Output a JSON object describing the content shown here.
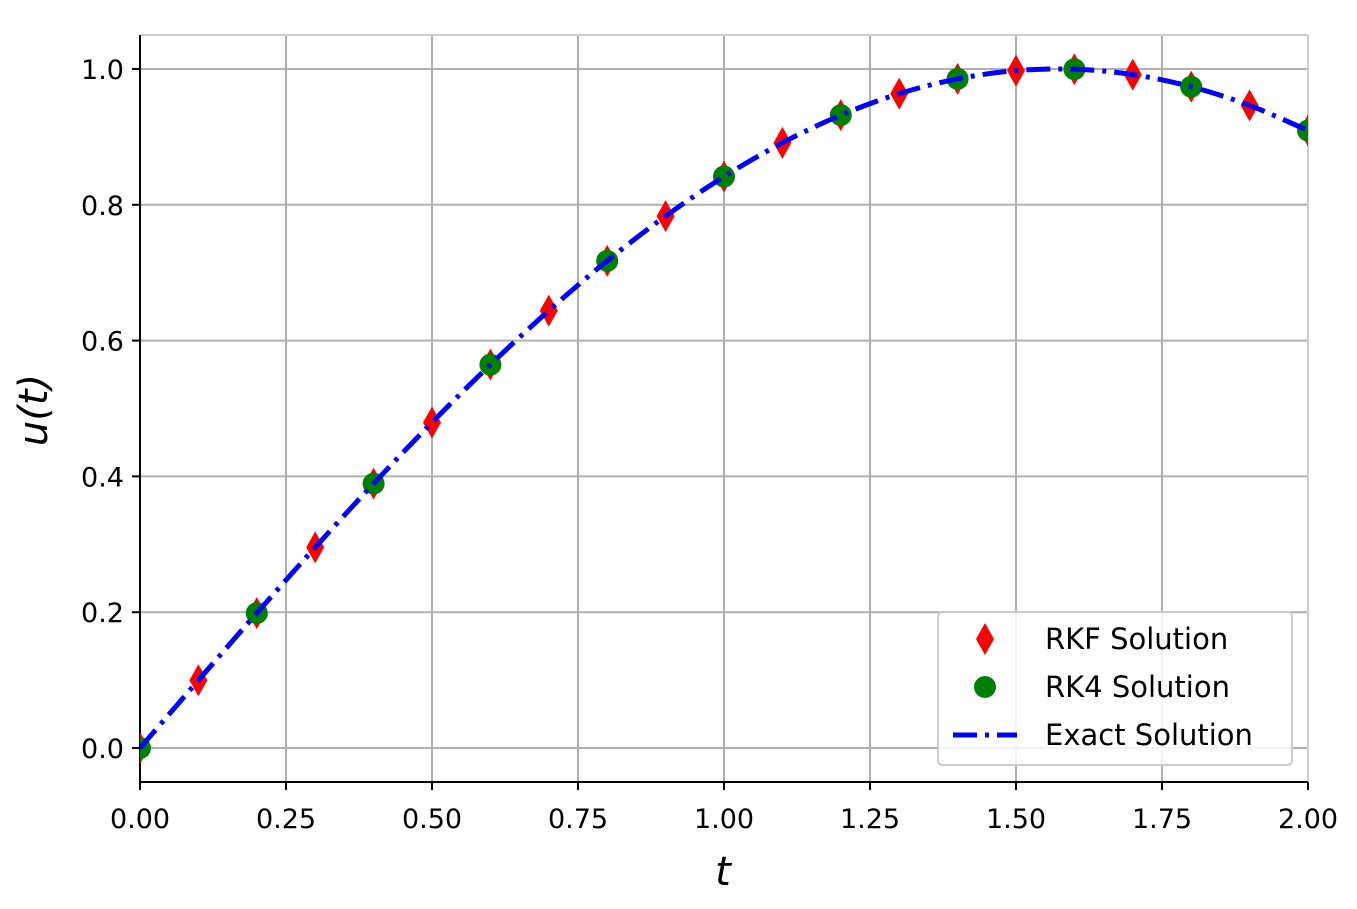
{
  "chart_data": {
    "type": "line",
    "xlabel": "t",
    "ylabel": "u(t)",
    "xlim": [
      0.0,
      2.0
    ],
    "ylim": [
      -0.05,
      1.05
    ],
    "xticks": [
      "0.00",
      "0.25",
      "0.50",
      "0.75",
      "1.00",
      "1.25",
      "1.50",
      "1.75",
      "2.00"
    ],
    "yticks": [
      "0.0",
      "0.2",
      "0.4",
      "0.6",
      "0.8",
      "1.0"
    ],
    "grid": true,
    "legend_position": "lower-right",
    "series": [
      {
        "name": "RKF Solution",
        "marker": "diamond",
        "color": "#ff0000",
        "x": [
          0.0,
          0.1,
          0.2,
          0.3,
          0.4,
          0.5,
          0.6,
          0.7,
          0.8,
          0.9,
          1.0,
          1.1,
          1.2,
          1.3,
          1.4,
          1.5,
          1.6,
          1.7,
          1.8,
          1.9,
          2.0
        ],
        "y": [
          0.0,
          0.0998,
          0.1987,
          0.2955,
          0.3894,
          0.4794,
          0.5646,
          0.6442,
          0.7174,
          0.7833,
          0.8415,
          0.8912,
          0.932,
          0.9636,
          0.9854,
          0.9975,
          0.9996,
          0.9917,
          0.9738,
          0.9463,
          0.9093
        ]
      },
      {
        "name": "RK4 Solution",
        "marker": "circle",
        "color": "#008000",
        "x": [
          0.0,
          0.2,
          0.4,
          0.6,
          0.8,
          1.0,
          1.2,
          1.4,
          1.6,
          1.8,
          2.0
        ],
        "y": [
          0.0,
          0.1987,
          0.3894,
          0.5646,
          0.7174,
          0.8415,
          0.932,
          0.9854,
          0.9996,
          0.9738,
          0.9093
        ]
      },
      {
        "name": "Exact Solution",
        "line_style": "dash-dot",
        "color": "#0000ff",
        "x": [
          0.0,
          0.1,
          0.2,
          0.3,
          0.4,
          0.5,
          0.6,
          0.7,
          0.8,
          0.9,
          1.0,
          1.1,
          1.2,
          1.3,
          1.4,
          1.5,
          1.6,
          1.7,
          1.8,
          1.9,
          2.0
        ],
        "y": [
          0.0,
          0.0998,
          0.1987,
          0.2955,
          0.3894,
          0.4794,
          0.5646,
          0.6442,
          0.7174,
          0.7833,
          0.8415,
          0.8912,
          0.932,
          0.9636,
          0.9854,
          0.9975,
          0.9996,
          0.9917,
          0.9738,
          0.9463,
          0.9093
        ]
      }
    ]
  }
}
